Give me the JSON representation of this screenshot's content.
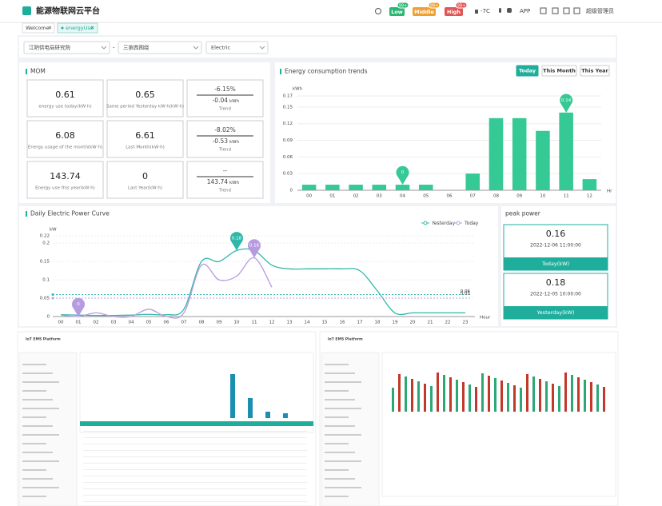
{
  "header": {
    "title": "能源物联网云平台",
    "badges": [
      {
        "label": "Low",
        "count": "99+"
      },
      {
        "label": "Middle",
        "count": "99+"
      },
      {
        "label": "High",
        "count": "99+"
      }
    ],
    "temp": "-7C",
    "app": "APP",
    "user": "超级管理员"
  },
  "tabs": [
    "Welcome",
    "energyUse"
  ],
  "filters": [
    "江阴供电局研究院",
    "三狼西围绕",
    "Electric"
  ],
  "filter_separator": "-",
  "mom": {
    "title": "MOM",
    "rows": [
      [
        {
          "value": 0.61,
          "label": "energy use today(kW·h)"
        },
        {
          "value": 0.65,
          "label": "Same period Yesterday kW·h(kW·h)"
        },
        {
          "percent": "-6.15%",
          "delta": "-0.04",
          "unit": "kWh",
          "label": "Trend"
        }
      ],
      [
        {
          "value": 6.08,
          "label": "Energy usage of the month(kW·h)"
        },
        {
          "value": 6.61,
          "label": "Last Month(kW·h)"
        },
        {
          "percent": "-8.02%",
          "delta": "-0.53",
          "unit": "kWh",
          "label": "Trend"
        }
      ],
      [
        {
          "value": 143.74,
          "label": "Energy use this year(kW·h)"
        },
        {
          "value": 0,
          "label": "Last Year(kW·h)"
        },
        {
          "percent": "--",
          "delta": "143.74",
          "unit": "kWh",
          "label": "Trend"
        }
      ]
    ]
  },
  "chart_data": [
    {
      "type": "bar",
      "title": "Energy consumption trends",
      "buttons": [
        "Today",
        "This Month",
        "This Year"
      ],
      "y_label": "kWh",
      "x_label": "Hr",
      "color": "#34c995",
      "categories": [
        "00",
        "01",
        "02",
        "03",
        "04",
        "05",
        "06",
        "07",
        "08",
        "09",
        "10",
        "11",
        "12"
      ],
      "values": [
        0.01,
        0.01,
        0.01,
        0.01,
        0.01,
        0.01,
        0,
        0.03,
        0.13,
        0.13,
        0.107,
        0.14,
        0.02
      ],
      "ylim": [
        0,
        0.17
      ],
      "yticks": [
        0,
        0.03,
        0.06,
        0.09,
        0.12,
        0.15,
        0.17
      ],
      "grid": true,
      "markers": [
        {
          "x": "04",
          "label": "0"
        },
        {
          "x": "11",
          "label": "0.14"
        }
      ]
    },
    {
      "type": "line",
      "title": "Daily Electric Power Curve",
      "y_label": "kW",
      "x_label": "Hour",
      "legend": "top-right",
      "categories": [
        "00",
        "01",
        "02",
        "03",
        "04",
        "05",
        "06",
        "07",
        "08",
        "09",
        "10",
        "11",
        "12",
        "13",
        "14",
        "15",
        "16",
        "17",
        "18",
        "19",
        "20",
        "21",
        "22",
        "23"
      ],
      "series": [
        {
          "name": "Yesterday",
          "color": "#2fb8a8",
          "average": 0.06,
          "values": [
            0.005,
            0.004,
            0.003,
            0.003,
            0.004,
            0.006,
            0.005,
            0.02,
            0.15,
            0.15,
            0.18,
            0.18,
            0.14,
            0.13,
            0.13,
            0.13,
            0.13,
            0.125,
            0.07,
            0.01,
            0.01,
            0.01,
            0.01,
            0.01
          ],
          "markers": [
            {
              "x": "10",
              "label": "0.18"
            }
          ]
        },
        {
          "name": "Today",
          "color": "#b79be0",
          "average": 0.05,
          "values": [
            0.004,
            0,
            0.01,
            0,
            0,
            0.02,
            0,
            0.01,
            0.14,
            0.1,
            0.11,
            0.16,
            0.08,
            null,
            null,
            null,
            null,
            null,
            null,
            null,
            null,
            null,
            null,
            null
          ],
          "markers": [
            {
              "x": "11",
              "label": "0.16"
            },
            {
              "x": "01",
              "label": "0"
            }
          ]
        }
      ],
      "ylim": [
        0,
        0.22
      ],
      "yticks": [
        0,
        0.05,
        0.1,
        0.15,
        0.2,
        0.22
      ]
    }
  ],
  "peak": {
    "title": "peak power",
    "cards": [
      {
        "value": 0.16,
        "time": "2022-12-06 11:00:00",
        "label": "Today(kW)"
      },
      {
        "value": 0.18,
        "time": "2022-12-05 10:00:00",
        "label": "Yesterday(kW)"
      }
    ]
  },
  "thumbnails": [
    {
      "title": "IoT EMS Platform"
    },
    {
      "title": "IoT EMS Platform"
    }
  ]
}
